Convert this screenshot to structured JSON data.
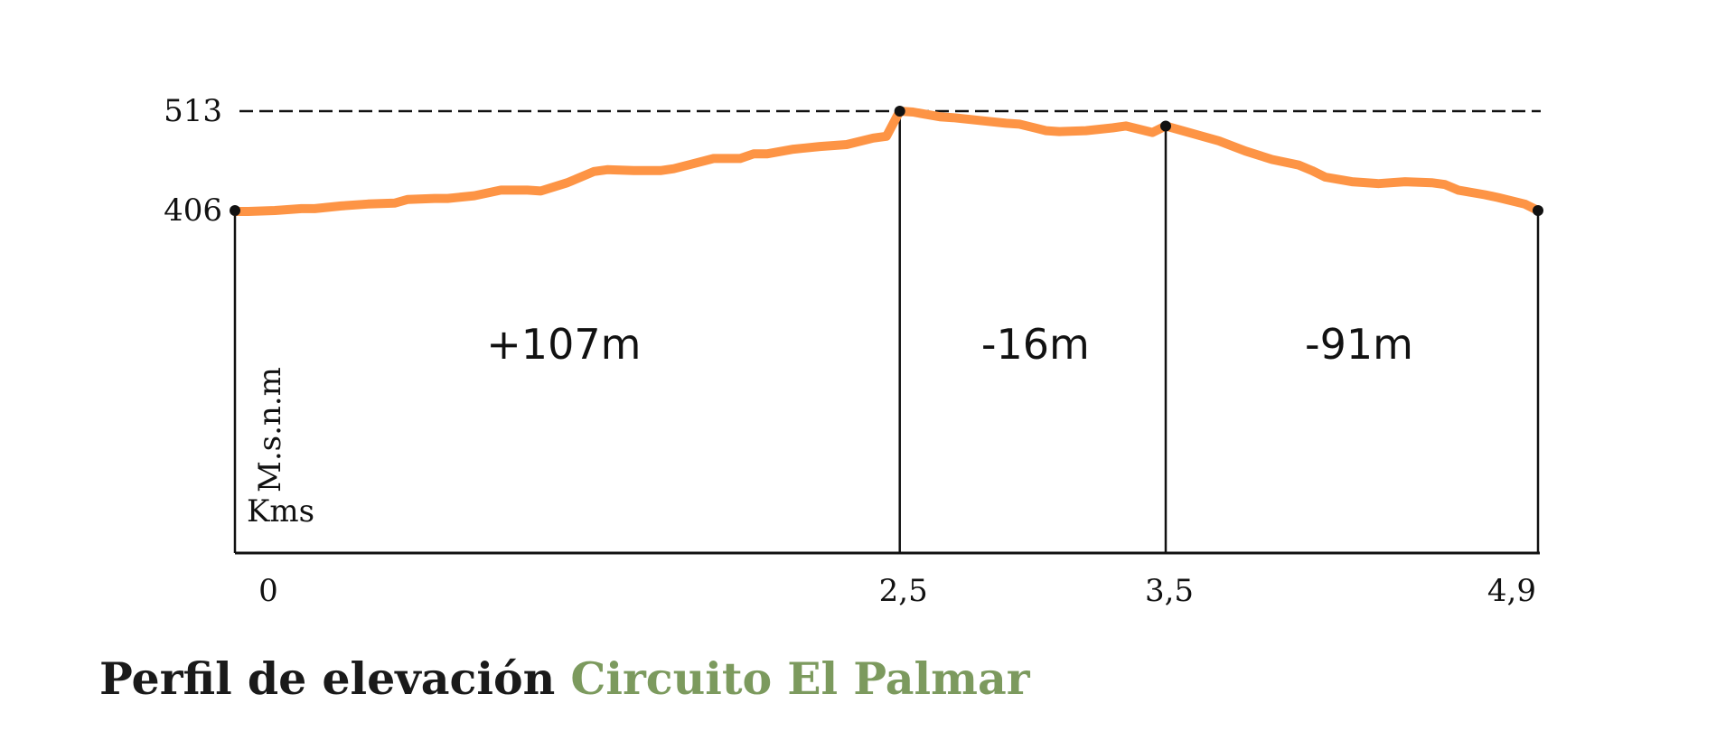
{
  "colors": {
    "profile_line": "#fd9445",
    "ink": "#111111",
    "title_accent": "#7c9a5e"
  },
  "title": {
    "main": "Perfil de elevación",
    "accent": "Circuito El Palmar"
  },
  "chart_data": {
    "type": "line",
    "ylabel": "M.s.n.m",
    "xlabel": "Kms",
    "y_ticks": [
      {
        "value": 513,
        "label": "513"
      },
      {
        "value": 406,
        "label": "406"
      }
    ],
    "x_ticks": [
      {
        "value": 0,
        "label": "0"
      },
      {
        "value": 2.5,
        "label": "2,5"
      },
      {
        "value": 3.5,
        "label": "3,5"
      },
      {
        "value": 4.9,
        "label": "4,9"
      }
    ],
    "max_reference": 513,
    "segments": [
      {
        "from": 0,
        "to": 2.5,
        "label": "+107m"
      },
      {
        "from": 2.5,
        "to": 3.5,
        "label": "-16m"
      },
      {
        "from": 3.5,
        "to": 4.9,
        "label": "-91m"
      }
    ],
    "markers": [
      {
        "x": 0,
        "y": 406
      },
      {
        "x": 2.5,
        "y": 513
      },
      {
        "x": 3.5,
        "y": 497
      },
      {
        "x": 4.9,
        "y": 406
      }
    ],
    "series": [
      {
        "x": [
          0,
          0.05,
          0.15,
          0.25,
          0.3,
          0.4,
          0.5,
          0.6,
          0.65,
          0.75,
          0.8,
          0.9,
          0.95,
          1.0,
          1.1,
          1.15,
          1.25,
          1.35,
          1.4,
          1.5,
          1.6,
          1.65,
          1.8,
          1.9,
          1.95,
          2.0,
          2.1,
          2.2,
          2.3,
          2.4,
          2.45,
          2.5,
          2.55,
          2.65,
          2.7,
          2.8,
          2.9,
          2.95,
          3.05,
          3.1,
          3.2,
          3.3,
          3.35,
          3.45,
          3.5,
          3.55,
          3.6,
          3.7,
          3.8,
          3.9,
          4.0,
          4.05,
          4.1,
          4.2,
          4.3,
          4.4,
          4.5,
          4.55,
          4.6,
          4.7,
          4.75,
          4.85,
          4.9
        ],
        "y": [
          405,
          405,
          406,
          408,
          408,
          411,
          413,
          414,
          418,
          419,
          419,
          422,
          425,
          428,
          428,
          427,
          436,
          448,
          450,
          449,
          449,
          451,
          462,
          462,
          467,
          467,
          472,
          475,
          477,
          484,
          486,
          513,
          512,
          507,
          506,
          503,
          500,
          499,
          492,
          491,
          492,
          495,
          497,
          490,
          497,
          493,
          489,
          481,
          470,
          461,
          455,
          449,
          442,
          437,
          435,
          437,
          436,
          434,
          428,
          423,
          420,
          413,
          406
        ]
      }
    ]
  }
}
